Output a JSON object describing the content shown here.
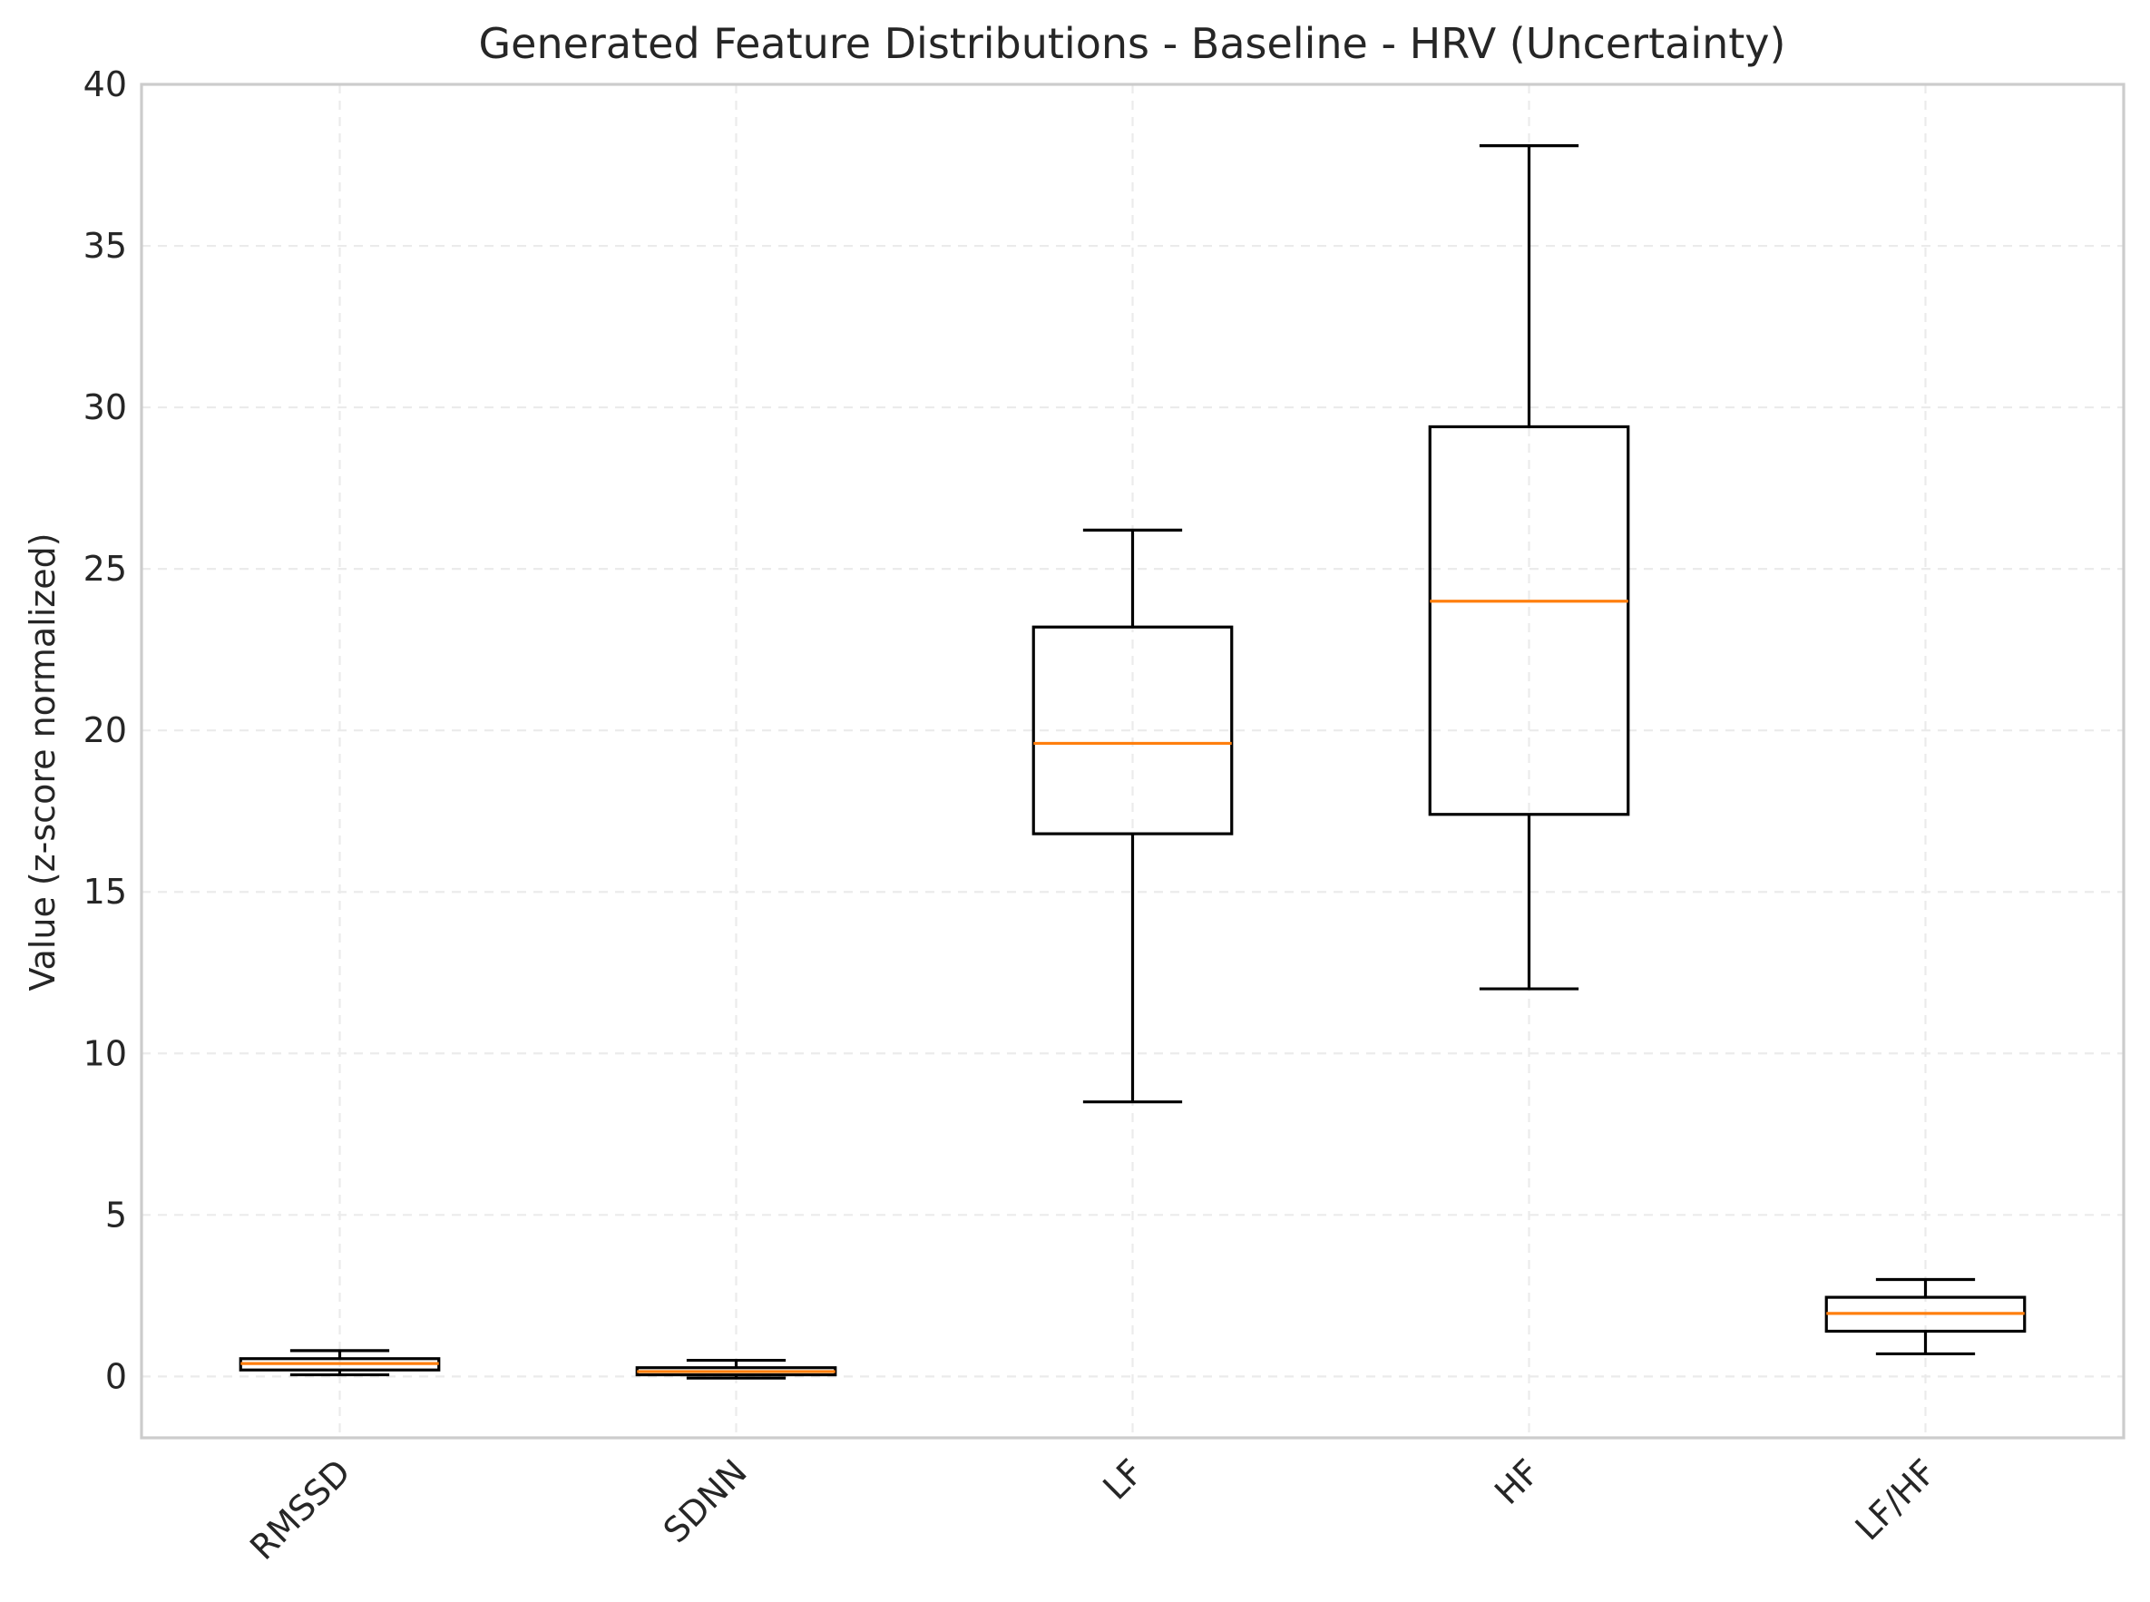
{
  "chart_data": {
    "type": "box",
    "title": "Generated Feature Distributions - Baseline - HRV (Uncertainty)",
    "xlabel": "",
    "ylabel": "Value (z-score normalized)",
    "ylim": [
      -1.9,
      40
    ],
    "yticks": [
      0,
      5,
      10,
      15,
      20,
      25,
      30,
      35,
      40
    ],
    "grid": true,
    "categories": [
      "RMSSD",
      "SDNN",
      "LF",
      "HF",
      "LF/HF"
    ],
    "boxes": [
      {
        "whisker_low": 0.05,
        "q1": 0.2,
        "median": 0.4,
        "q3": 0.55,
        "whisker_high": 0.8
      },
      {
        "whisker_low": -0.05,
        "q1": 0.05,
        "median": 0.15,
        "q3": 0.27,
        "whisker_high": 0.5
      },
      {
        "whisker_low": 8.5,
        "q1": 16.8,
        "median": 19.6,
        "q3": 23.2,
        "whisker_high": 26.2
      },
      {
        "whisker_low": 12.0,
        "q1": 17.4,
        "median": 24.0,
        "q3": 29.4,
        "whisker_high": 38.1
      },
      {
        "whisker_low": 0.7,
        "q1": 1.4,
        "median": 1.95,
        "q3": 2.45,
        "whisker_high": 3.0
      }
    ],
    "colors": {
      "box": "#000000",
      "median": "#ff7f0e",
      "grid": "#ebebeb",
      "frame": "#cccccc"
    }
  }
}
